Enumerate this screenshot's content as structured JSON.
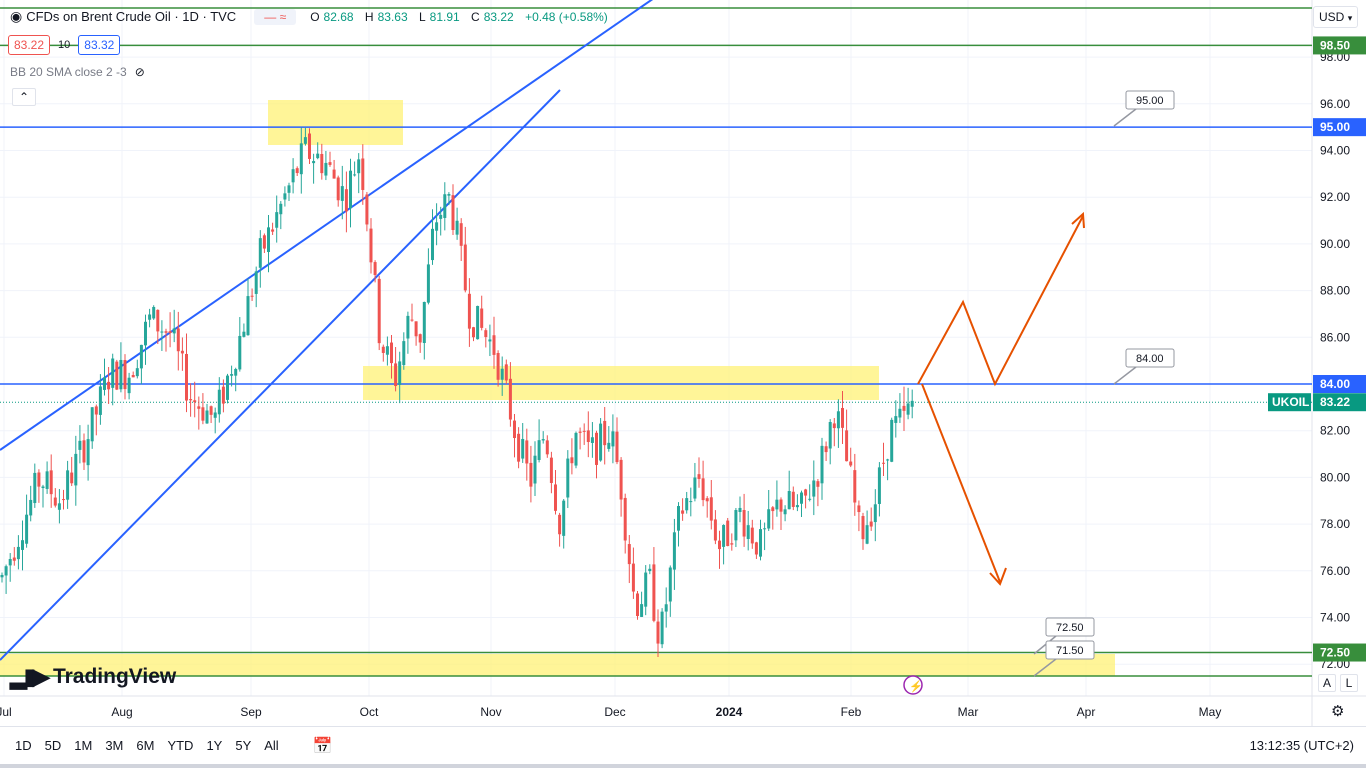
{
  "header": {
    "symbol_title": "CFDs on Brent Crude Oil · 1D · TVC",
    "ohlc": {
      "o_label": "O",
      "o": "82.68",
      "h_label": "H",
      "h": "83.63",
      "l_label": "L",
      "l": "81.91",
      "c_label": "C",
      "c": "83.22",
      "change": "+0.48 (+0.58%)"
    },
    "sell_price": "83.22",
    "spread": "10",
    "buy_price": "83.32",
    "indicator": "BB 20 SMA close 2 -3",
    "currency": "USD"
  },
  "price_axis": {
    "ticks": [
      "98.00",
      "96.00",
      "94.00",
      "92.00",
      "90.00",
      "88.00",
      "86.00",
      "84.00",
      "82.00",
      "80.00",
      "78.00",
      "76.00",
      "74.00",
      "72.00"
    ],
    "labels": [
      {
        "text": "98.50",
        "price": 98.5,
        "color": "#388e3c"
      },
      {
        "text": "95.00",
        "price": 95.0,
        "color": "#2962ff"
      },
      {
        "text": "84.00",
        "price": 84.0,
        "color": "#2962ff"
      },
      {
        "text": "83.22",
        "price": 83.22,
        "color": "#089981"
      },
      {
        "text": "72.50",
        "price": 72.5,
        "color": "#388e3c"
      }
    ],
    "symbol_tag": "UKOIL",
    "scale_a": "A",
    "scale_l": "L"
  },
  "time_axis": {
    "labels": [
      "Jul",
      "Aug",
      "Sep",
      "Oct",
      "Nov",
      "Dec",
      "2024",
      "Feb",
      "Mar",
      "Apr",
      "May"
    ]
  },
  "annotations": {
    "callouts": [
      {
        "text": "95.00",
        "price": 95.0
      },
      {
        "text": "84.00",
        "price": 84.0
      },
      {
        "text": "72.50",
        "price": 72.5
      },
      {
        "text": "71.50",
        "price": 71.5
      }
    ],
    "colors": {
      "up": "#26a69a",
      "down": "#ef5350",
      "channel": "#2962ff",
      "level_blue": "#2962ff",
      "level_green": "#388e3c",
      "zone": "#fff176",
      "projection": "#e65100"
    }
  },
  "bottom_bar": {
    "timeframes": [
      "1D",
      "5D",
      "1M",
      "3M",
      "6M",
      "YTD",
      "1Y",
      "5Y",
      "All"
    ],
    "clock": "13:12:35 (UTC+2)"
  },
  "branding": {
    "logo_text": "TradingView"
  }
}
